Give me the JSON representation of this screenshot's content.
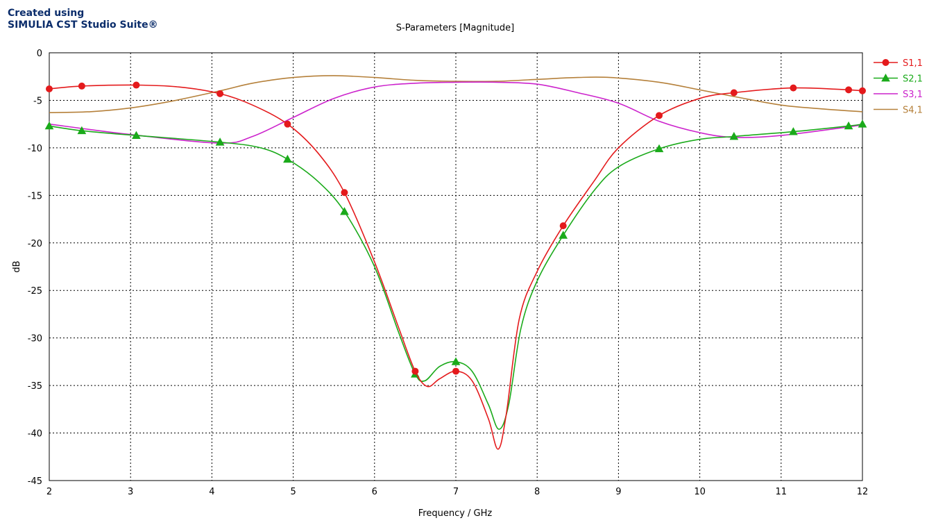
{
  "watermark": {
    "line1": "Created using",
    "line2": "SIMULIA CST Studio Suite®"
  },
  "chart_data": {
    "type": "line",
    "title": "S-Parameters [Magnitude]",
    "xlabel": "Frequency / GHz",
    "ylabel": "dB",
    "xlim": [
      2,
      12
    ],
    "ylim": [
      -45,
      0
    ],
    "x_ticks": [
      "2",
      "3",
      "4",
      "5",
      "6",
      "7",
      "8",
      "9",
      "10",
      "11",
      "12"
    ],
    "y_ticks": [
      "0",
      "-5",
      "-10",
      "-15",
      "-20",
      "-25",
      "-30",
      "-35",
      "-40",
      "-45"
    ],
    "grid": true,
    "legend_position": "top-right",
    "series": [
      {
        "name": "S1,1",
        "color": "#e41a1c",
        "marker": "circle",
        "markers_x": [
          2,
          2.4,
          3.07,
          4.1,
          4.93,
          5.63,
          6.5,
          7.0,
          8.32,
          9.5,
          10.42,
          11.15,
          11.83,
          12
        ],
        "points": [
          [
            2,
            -3.8
          ],
          [
            2.4,
            -3.5
          ],
          [
            3.07,
            -3.4
          ],
          [
            3.6,
            -3.6
          ],
          [
            4.1,
            -4.3
          ],
          [
            4.5,
            -5.5
          ],
          [
            4.93,
            -7.5
          ],
          [
            5.3,
            -10.5
          ],
          [
            5.63,
            -14.7
          ],
          [
            6.0,
            -22.0
          ],
          [
            6.3,
            -29.0
          ],
          [
            6.5,
            -33.5
          ],
          [
            6.65,
            -35.1
          ],
          [
            6.8,
            -34.3
          ],
          [
            7.0,
            -33.5
          ],
          [
            7.2,
            -34.5
          ],
          [
            7.4,
            -38.5
          ],
          [
            7.52,
            -41.7
          ],
          [
            7.62,
            -38.0
          ],
          [
            7.78,
            -28.0
          ],
          [
            8.0,
            -23.0
          ],
          [
            8.32,
            -18.2
          ],
          [
            8.7,
            -13.5
          ],
          [
            9.0,
            -10.0
          ],
          [
            9.5,
            -6.6
          ],
          [
            10.0,
            -4.8
          ],
          [
            10.42,
            -4.2
          ],
          [
            11.15,
            -3.7
          ],
          [
            11.83,
            -3.9
          ],
          [
            12,
            -4.0
          ]
        ]
      },
      {
        "name": "S2,1",
        "color": "#1aaa1a",
        "marker": "triangle",
        "markers_x": [
          2,
          2.4,
          3.07,
          4.1,
          4.93,
          5.63,
          6.5,
          7.0,
          8.32,
          9.5,
          10.42,
          11.15,
          11.83,
          12
        ],
        "points": [
          [
            2,
            -7.7
          ],
          [
            2.4,
            -8.2
          ],
          [
            3.07,
            -8.7
          ],
          [
            4.1,
            -9.4
          ],
          [
            4.6,
            -10.0
          ],
          [
            4.93,
            -11.2
          ],
          [
            5.3,
            -13.5
          ],
          [
            5.63,
            -16.7
          ],
          [
            6.0,
            -22.5
          ],
          [
            6.3,
            -29.5
          ],
          [
            6.5,
            -33.8
          ],
          [
            6.62,
            -34.5
          ],
          [
            6.8,
            -33.0
          ],
          [
            7.0,
            -32.5
          ],
          [
            7.2,
            -33.5
          ],
          [
            7.4,
            -37.0
          ],
          [
            7.53,
            -39.6
          ],
          [
            7.65,
            -37.0
          ],
          [
            7.8,
            -29.0
          ],
          [
            8.0,
            -24.0
          ],
          [
            8.32,
            -19.2
          ],
          [
            8.7,
            -14.5
          ],
          [
            9.0,
            -12.0
          ],
          [
            9.5,
            -10.1
          ],
          [
            10.0,
            -9.1
          ],
          [
            10.42,
            -8.8
          ],
          [
            11.15,
            -8.3
          ],
          [
            11.83,
            -7.7
          ],
          [
            12,
            -7.5
          ]
        ]
      },
      {
        "name": "S3,1",
        "color": "#cc22cc",
        "marker": "none",
        "markers_x": [],
        "points": [
          [
            2,
            -7.5
          ],
          [
            3.0,
            -8.6
          ],
          [
            4.1,
            -9.5
          ],
          [
            4.5,
            -8.8
          ],
          [
            5.0,
            -6.8
          ],
          [
            5.5,
            -4.8
          ],
          [
            6.0,
            -3.6
          ],
          [
            6.5,
            -3.2
          ],
          [
            7.0,
            -3.1
          ],
          [
            7.5,
            -3.1
          ],
          [
            8.0,
            -3.3
          ],
          [
            8.5,
            -4.2
          ],
          [
            9.0,
            -5.3
          ],
          [
            9.5,
            -7.2
          ],
          [
            10.0,
            -8.4
          ],
          [
            10.42,
            -8.9
          ],
          [
            11.0,
            -8.7
          ],
          [
            12,
            -7.6
          ]
        ]
      },
      {
        "name": "S4,1",
        "color": "#b5803a",
        "marker": "none",
        "markers_x": [],
        "points": [
          [
            2,
            -6.3
          ],
          [
            2.5,
            -6.2
          ],
          [
            3.0,
            -5.8
          ],
          [
            3.5,
            -5.1
          ],
          [
            4.1,
            -4.0
          ],
          [
            4.5,
            -3.2
          ],
          [
            5.0,
            -2.6
          ],
          [
            5.5,
            -2.4
          ],
          [
            6.0,
            -2.6
          ],
          [
            6.5,
            -2.9
          ],
          [
            7.0,
            -3.0
          ],
          [
            7.5,
            -3.0
          ],
          [
            8.0,
            -2.8
          ],
          [
            8.5,
            -2.6
          ],
          [
            8.9,
            -2.6
          ],
          [
            9.5,
            -3.1
          ],
          [
            10.0,
            -3.9
          ],
          [
            10.42,
            -4.6
          ],
          [
            11.0,
            -5.5
          ],
          [
            11.5,
            -5.9
          ],
          [
            12,
            -6.2
          ]
        ]
      }
    ]
  }
}
